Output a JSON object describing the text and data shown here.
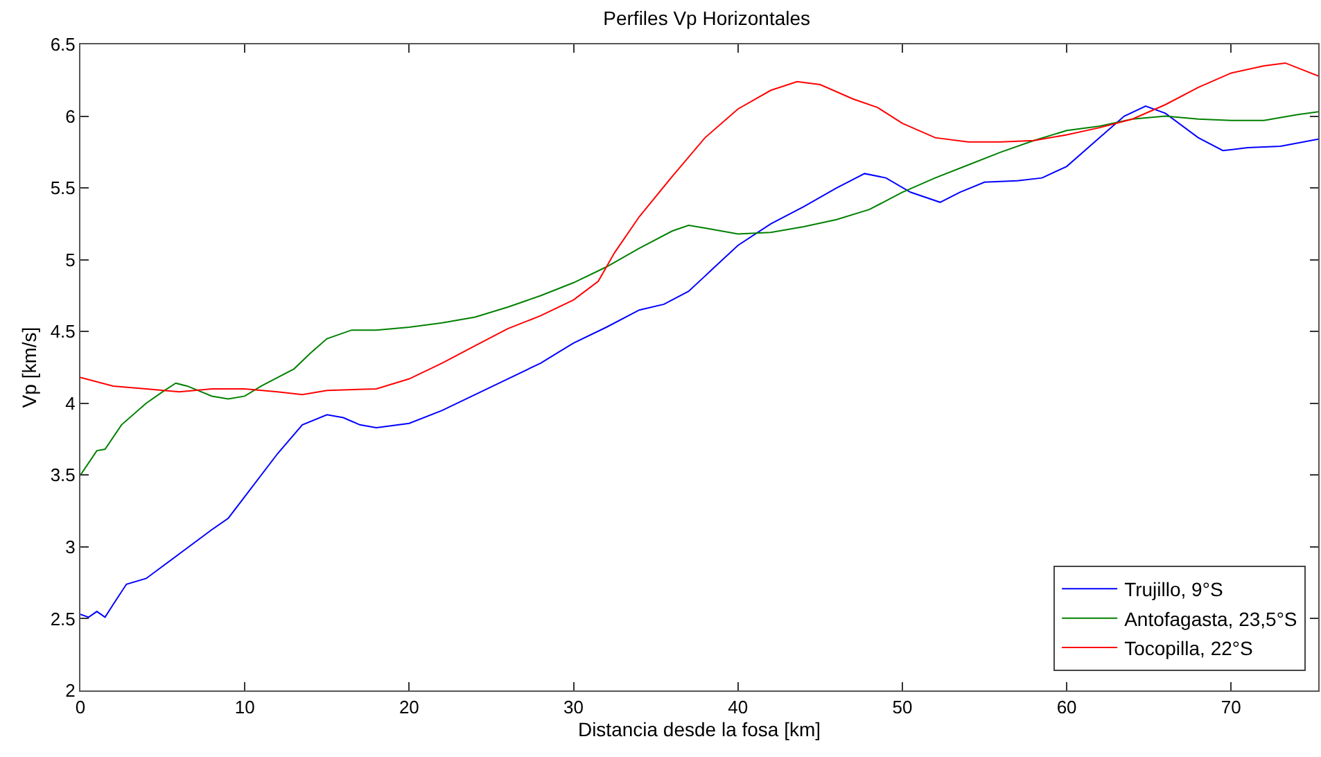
{
  "chart_data": {
    "type": "line",
    "title": "Perfiles Vp Horizontales",
    "xlabel": "Distancia desde la fosa [km]",
    "ylabel": "Vp [km/s]",
    "xlim": [
      0,
      75.3
    ],
    "xticks": [
      0,
      10,
      20,
      30,
      40,
      50,
      60,
      70
    ],
    "ylim": [
      2,
      6.5
    ],
    "yticks": [
      2,
      2.5,
      3,
      3.5,
      4,
      4.5,
      5,
      5.5,
      6,
      6.5
    ],
    "legend": "bottom right",
    "line_style": "solid",
    "series": [
      {
        "name": "Trujillo, 9°S",
        "color": "#0000ff",
        "x": [
          0,
          0.5,
          1,
          1.5,
          2,
          2.8,
          4,
          6,
          8,
          9,
          10,
          12,
          13.5,
          15,
          16,
          17,
          18,
          20,
          22,
          24,
          26,
          28,
          30,
          32,
          34,
          35.5,
          37,
          38.5,
          40,
          42,
          44,
          46,
          47.7,
          49,
          50.5,
          52.3,
          53.5,
          55,
          57,
          58.5,
          60,
          62,
          63.5,
          64.8,
          66,
          68,
          69.5,
          71,
          73,
          75.3
        ],
        "values": [
          2.53,
          2.51,
          2.55,
          2.51,
          2.6,
          2.74,
          2.78,
          2.95,
          3.12,
          3.2,
          3.35,
          3.65,
          3.85,
          3.92,
          3.9,
          3.85,
          3.83,
          3.86,
          3.95,
          4.06,
          4.17,
          4.28,
          4.42,
          4.53,
          4.65,
          4.69,
          4.78,
          4.94,
          5.1,
          5.25,
          5.37,
          5.5,
          5.6,
          5.57,
          5.47,
          5.4,
          5.47,
          5.54,
          5.55,
          5.57,
          5.65,
          5.85,
          6.0,
          6.07,
          6.02,
          5.85,
          5.76,
          5.78,
          5.79,
          5.84
        ]
      },
      {
        "name": "Antofagasta, 23,5°S",
        "color": "#008000",
        "x": [
          0,
          1,
          1.5,
          2.5,
          4,
          5,
          5.8,
          6.5,
          8,
          9,
          10,
          11,
          13,
          14,
          15,
          16.5,
          18,
          20,
          22,
          24,
          26,
          28,
          30,
          32,
          34,
          36,
          37,
          38,
          40,
          42,
          44,
          46,
          48,
          50,
          52,
          54,
          56,
          58,
          60,
          62,
          64,
          66,
          68,
          70,
          72,
          74,
          75.3
        ],
        "values": [
          3.5,
          3.67,
          3.68,
          3.85,
          4.0,
          4.08,
          4.14,
          4.12,
          4.05,
          4.03,
          4.05,
          4.12,
          4.24,
          4.35,
          4.45,
          4.51,
          4.51,
          4.53,
          4.56,
          4.6,
          4.67,
          4.75,
          4.84,
          4.95,
          5.08,
          5.2,
          5.24,
          5.22,
          5.18,
          5.19,
          5.23,
          5.28,
          5.35,
          5.47,
          5.57,
          5.66,
          5.75,
          5.83,
          5.9,
          5.93,
          5.98,
          6.0,
          5.98,
          5.97,
          5.97,
          6.01,
          6.03
        ]
      },
      {
        "name": "Tocopilla, 22°S",
        "color": "#ff0000",
        "x": [
          0,
          2,
          4,
          6,
          8,
          10,
          12,
          13.5,
          15,
          18,
          20,
          22,
          24,
          26,
          28,
          30,
          31.5,
          32.5,
          34,
          36,
          38,
          40,
          42,
          43.6,
          45,
          47,
          48.5,
          50,
          52,
          54,
          56,
          58,
          60,
          62,
          64,
          66,
          68,
          70,
          72,
          73.3,
          75.3
        ],
        "values": [
          4.18,
          4.12,
          4.1,
          4.08,
          4.1,
          4.1,
          4.08,
          4.06,
          4.09,
          4.1,
          4.17,
          4.28,
          4.4,
          4.52,
          4.61,
          4.72,
          4.85,
          5.05,
          5.3,
          5.58,
          5.85,
          6.05,
          6.18,
          6.24,
          6.22,
          6.12,
          6.06,
          5.95,
          5.85,
          5.82,
          5.82,
          5.83,
          5.87,
          5.92,
          5.98,
          6.08,
          6.2,
          6.3,
          6.35,
          6.37,
          6.28
        ]
      }
    ]
  }
}
